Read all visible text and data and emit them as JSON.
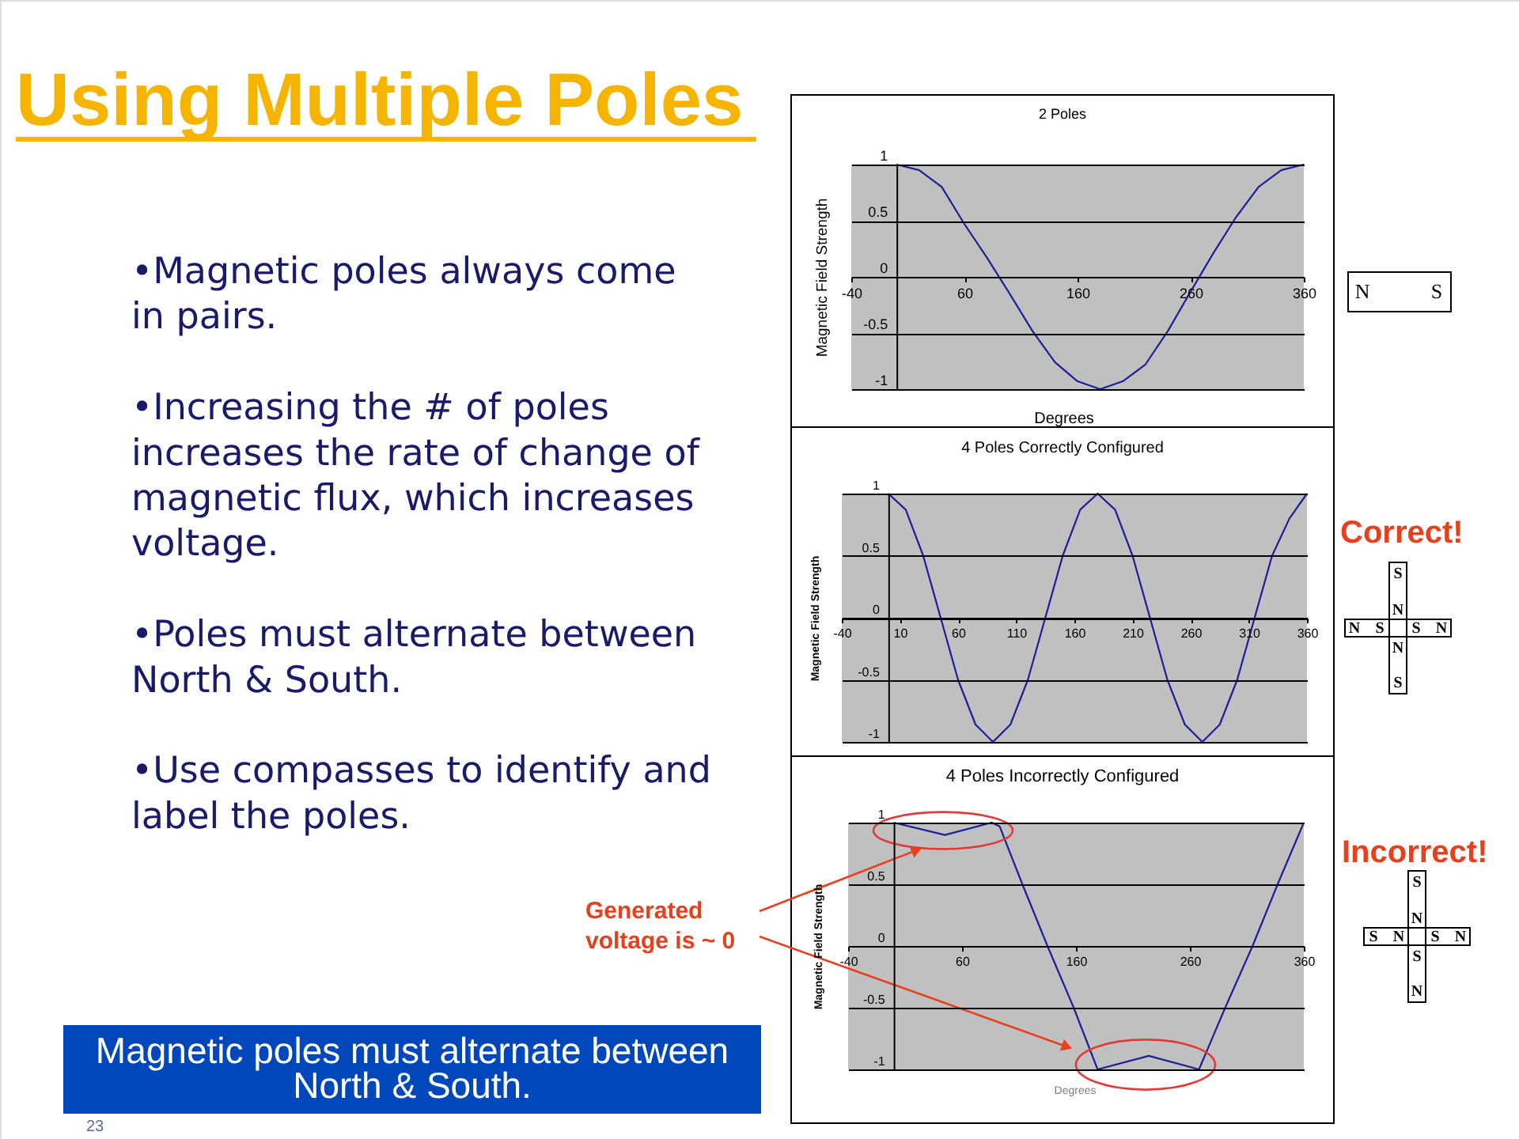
{
  "chart_data": [
    {
      "type": "other",
      "title": "Using Multiple Poles",
      "annotations": [
        "•Magnetic poles always come in pairs.",
        "•Increasing the # of poles increases the rate of change of magnetic flux, which increases voltage.",
        "•Poles must alternate between North & South.",
        "•Use compasses to identify and label the poles.",
        "Magnetic poles must alternate between North & South.",
        "23"
      ]
    },
    {
      "type": "line",
      "title": "2 Poles",
      "xlabel": "Degrees",
      "ylabel": "Magnetic Field Strength",
      "x": [
        0,
        20,
        40,
        60,
        80,
        100,
        120,
        140,
        160,
        180,
        200,
        220,
        240,
        260,
        280,
        300,
        320,
        340,
        360
      ],
      "series": [
        {
          "color": "#1e1e96",
          "values": [
            1,
            0.95,
            0.8,
            0.47,
            0.17,
            -0.15,
            -0.48,
            -0.76,
            -0.93,
            -1,
            -0.93,
            -0.78,
            -0.48,
            -0.13,
            0.21,
            0.53,
            0.8,
            0.95,
            1
          ]
        }
      ],
      "xlim": [
        -40,
        360
      ],
      "xticks": [
        -40,
        60,
        160,
        260,
        360
      ],
      "ylim": [
        -1,
        1
      ],
      "yticks": [
        -1,
        -0.5,
        0,
        0.5,
        1
      ],
      "grid": "y",
      "annotations": [
        "N",
        "S"
      ]
    },
    {
      "type": "line",
      "title": "4 Poles Correctly Configured",
      "ylabel": "Magnetic Field Strength",
      "x": [
        0,
        15,
        30,
        45,
        60,
        75,
        90,
        105,
        120,
        135,
        150,
        165,
        180,
        195,
        210,
        225,
        240,
        255,
        270,
        285,
        300,
        315,
        330,
        345,
        360
      ],
      "series": [
        {
          "color": "#1e1e96",
          "values": [
            1,
            0.87,
            0.5,
            0,
            -0.5,
            -0.86,
            -1,
            -0.86,
            -0.5,
            0,
            0.5,
            0.87,
            1,
            0.87,
            0.5,
            0,
            -0.5,
            -0.86,
            -1,
            -0.86,
            -0.5,
            0,
            0.5,
            0.8,
            1
          ]
        }
      ],
      "xlim": [
        -40,
        360
      ],
      "xticks": [
        -40,
        10,
        60,
        110,
        160,
        210,
        260,
        310,
        360
      ],
      "ylim": [
        -1,
        1
      ],
      "yticks": [
        -1,
        -0.5,
        0,
        0.5,
        1
      ],
      "grid": "y",
      "annotations": [
        "Correct!",
        "S",
        "N",
        "N",
        "S",
        "S",
        "N",
        "N",
        "S"
      ]
    },
    {
      "type": "line",
      "title": "4 Poles Incorrectly Configured",
      "xlabel": "Degrees",
      "ylabel": "Magnetic Field Strength",
      "x": [
        0,
        45,
        86,
        93,
        113,
        135,
        158,
        179,
        224,
        268,
        291,
        315,
        337,
        360
      ],
      "series": [
        {
          "color": "#1e1e96",
          "values": [
            1,
            0.9,
            1,
            0.97,
            0.5,
            0,
            -0.5,
            -1,
            -0.89,
            -1,
            -0.5,
            0,
            0.5,
            1
          ]
        }
      ],
      "xlim": [
        -40,
        360
      ],
      "xticks": [
        -40,
        60,
        160,
        260,
        360
      ],
      "ylim": [
        -1,
        1
      ],
      "yticks": [
        -1,
        -0.5,
        0,
        0.5,
        1
      ],
      "grid": "y",
      "annotations": [
        "Generated voltage is ~ 0",
        "Incorrect!",
        "S",
        "N",
        "S",
        "N",
        "S",
        "N",
        "S",
        "N"
      ]
    }
  ]
}
